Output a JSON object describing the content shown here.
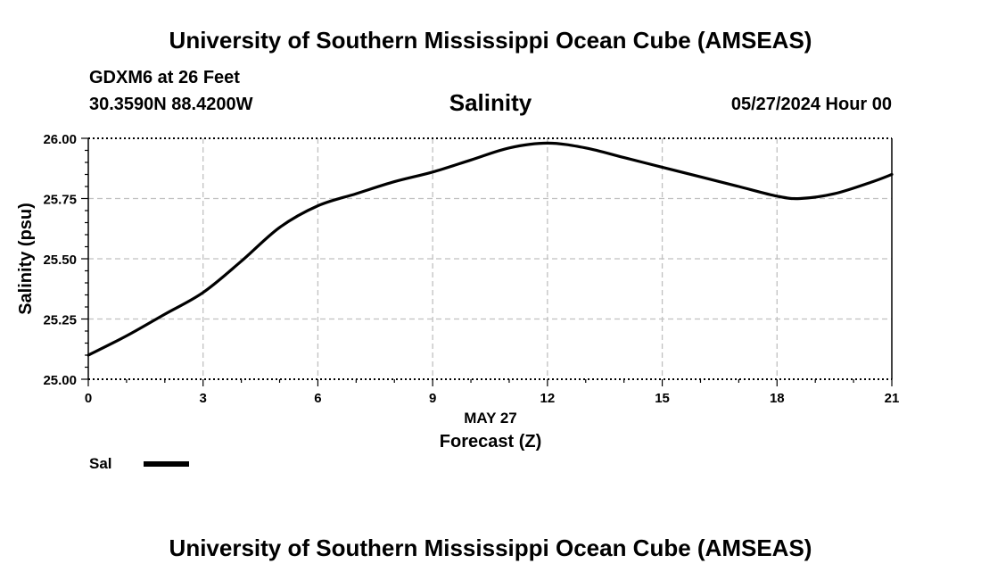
{
  "header": {
    "title": "University of Southern Mississippi Ocean Cube (AMSEAS)",
    "station": "GDXM6 at 26 Feet",
    "coordinates": "30.3590N  88.4200W",
    "datetime": "05/27/2024 Hour 00"
  },
  "footer": {
    "title": "University of Southern Mississippi Ocean Cube (AMSEAS)"
  },
  "colors": {
    "line": "#000000",
    "grid": "#c0c0c0",
    "background": "#ffffff"
  },
  "chart_data": {
    "type": "line",
    "title": "Salinity",
    "xlabel": "Forecast (Z)",
    "xlabel_date": "MAY 27",
    "ylabel": "Salinity (psu)",
    "xlim": [
      0,
      21
    ],
    "ylim": [
      25.0,
      26.0
    ],
    "x_ticks": [
      0,
      3,
      6,
      9,
      12,
      15,
      18,
      21
    ],
    "x_tick_labels": [
      "0",
      "3",
      "6",
      "9",
      "12",
      "15",
      "18",
      "21"
    ],
    "y_ticks": [
      25.0,
      25.25,
      25.5,
      25.75,
      26.0
    ],
    "y_tick_labels": [
      "25.00",
      "25.25",
      "25.50",
      "25.75",
      "26.00"
    ],
    "grid": true,
    "legend": [
      {
        "label": "Sal",
        "placement": "bottom-left"
      }
    ],
    "series": [
      {
        "name": "Sal",
        "x": [
          0,
          1,
          2,
          3,
          4,
          5,
          6,
          7,
          8,
          9,
          10,
          11,
          12,
          13,
          14,
          15,
          16,
          17,
          18,
          18.6,
          19.5,
          20.5,
          21
        ],
        "values": [
          25.1,
          25.18,
          25.27,
          25.36,
          25.49,
          25.63,
          25.72,
          25.77,
          25.82,
          25.86,
          25.91,
          25.96,
          25.98,
          25.96,
          25.92,
          25.88,
          25.84,
          25.8,
          25.76,
          25.75,
          25.77,
          25.82,
          25.85
        ]
      }
    ]
  }
}
